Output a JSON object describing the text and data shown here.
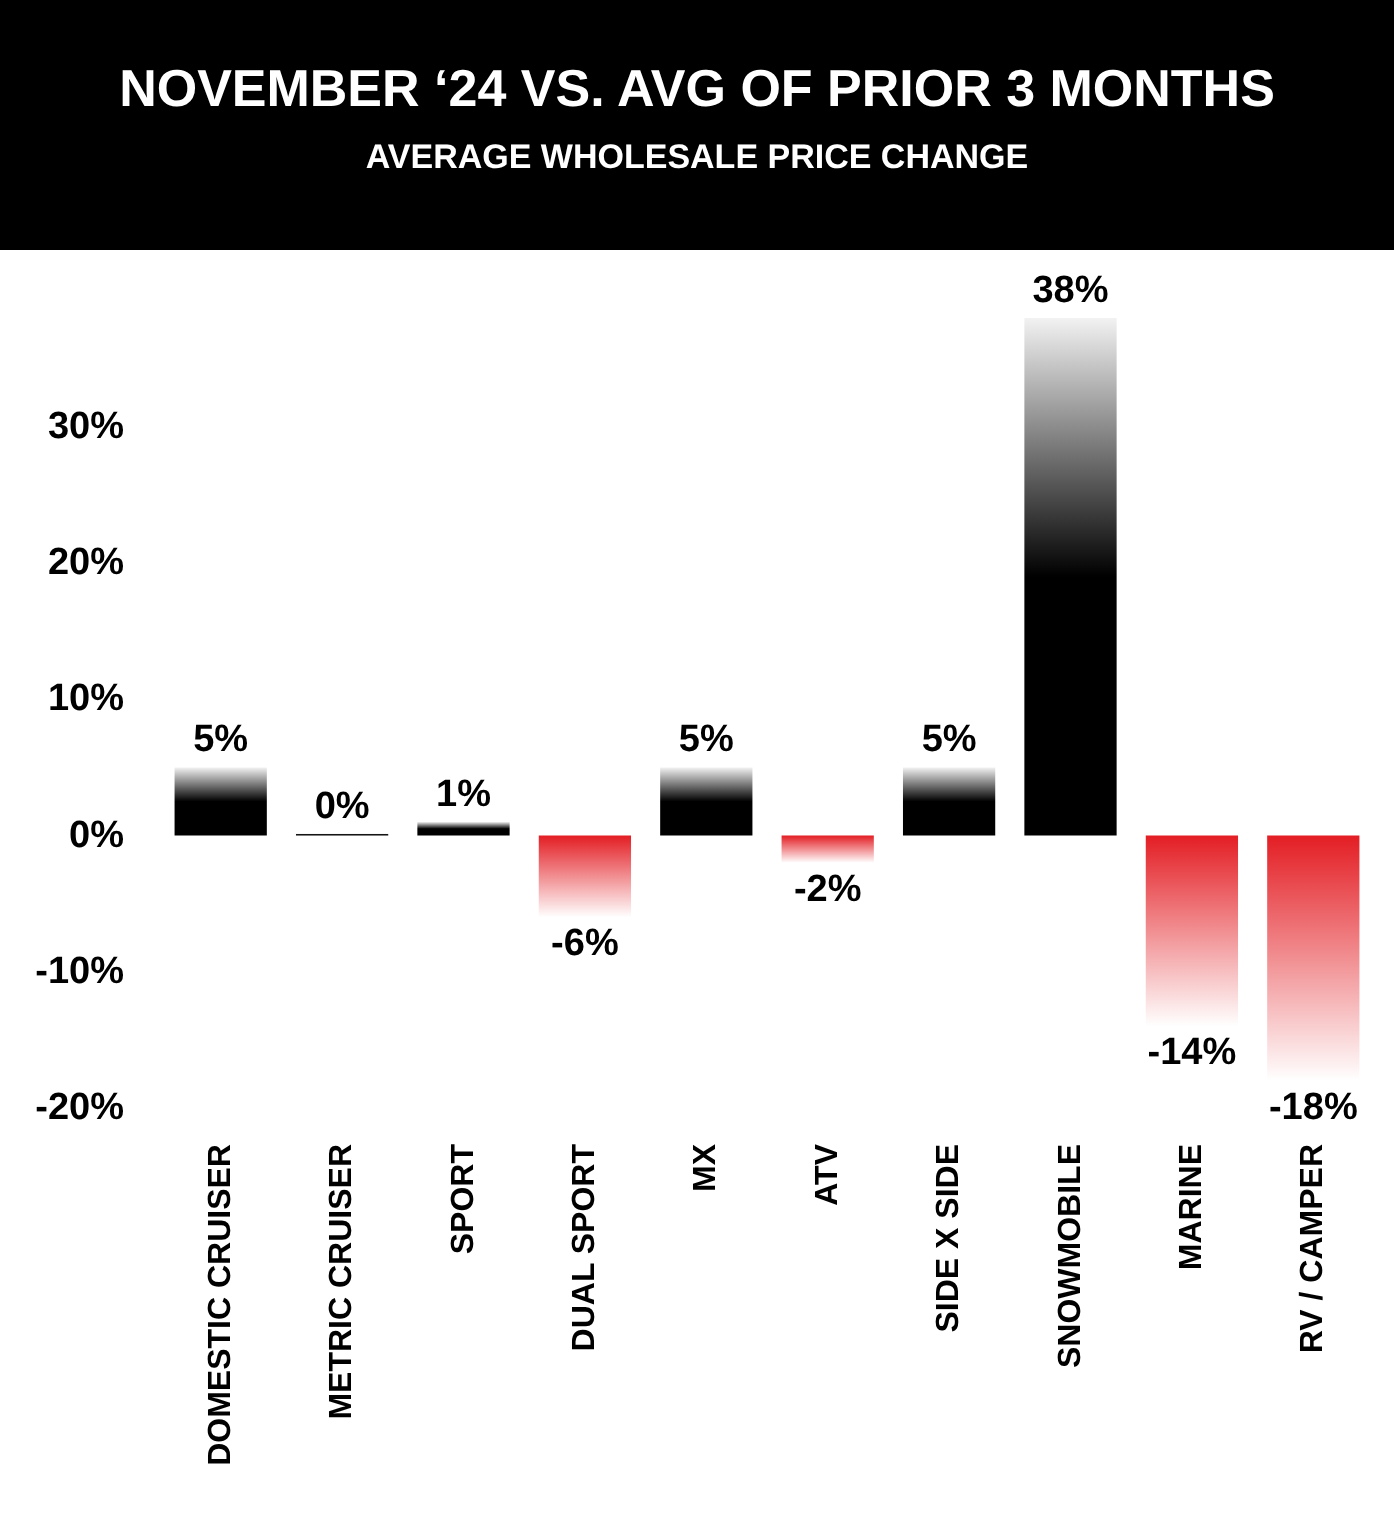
{
  "chart_data": {
    "type": "bar",
    "title": "NOVEMBER ‘24 VS. AVG OF PRIOR 3 MONTHS",
    "subtitle": "AVERAGE WHOLESALE PRICE CHANGE",
    "categories": [
      "DOMESTIC CRUISER",
      "METRIC CRUISER",
      "SPORT",
      "DUAL SPORT",
      "MX",
      "ATV",
      "SIDE X SIDE",
      "SNOWMOBILE",
      "MARINE",
      "RV / CAMPER"
    ],
    "values": [
      5,
      0,
      1,
      -6,
      5,
      -2,
      5,
      38,
      -14,
      -18
    ],
    "value_labels": [
      "5%",
      "0%",
      "1%",
      "-6%",
      "5%",
      "-2%",
      "5%",
      "38%",
      "-14%",
      "-18%"
    ],
    "colors": [
      "#000000",
      "#000000",
      "#000000",
      "#e31e24",
      "#000000",
      "#e31e24",
      "#000000",
      "#000000",
      "#e31e24",
      "#e31e24"
    ],
    "ylim": [
      -20,
      38
    ],
    "yticks": [
      {
        "value": -20,
        "label": "-20%"
      },
      {
        "value": -10,
        "label": "-10%"
      },
      {
        "value": 0,
        "label": "0%"
      },
      {
        "value": 10,
        "label": "10%"
      },
      {
        "value": 20,
        "label": "20%"
      },
      {
        "value": 30,
        "label": "30%"
      }
    ]
  }
}
